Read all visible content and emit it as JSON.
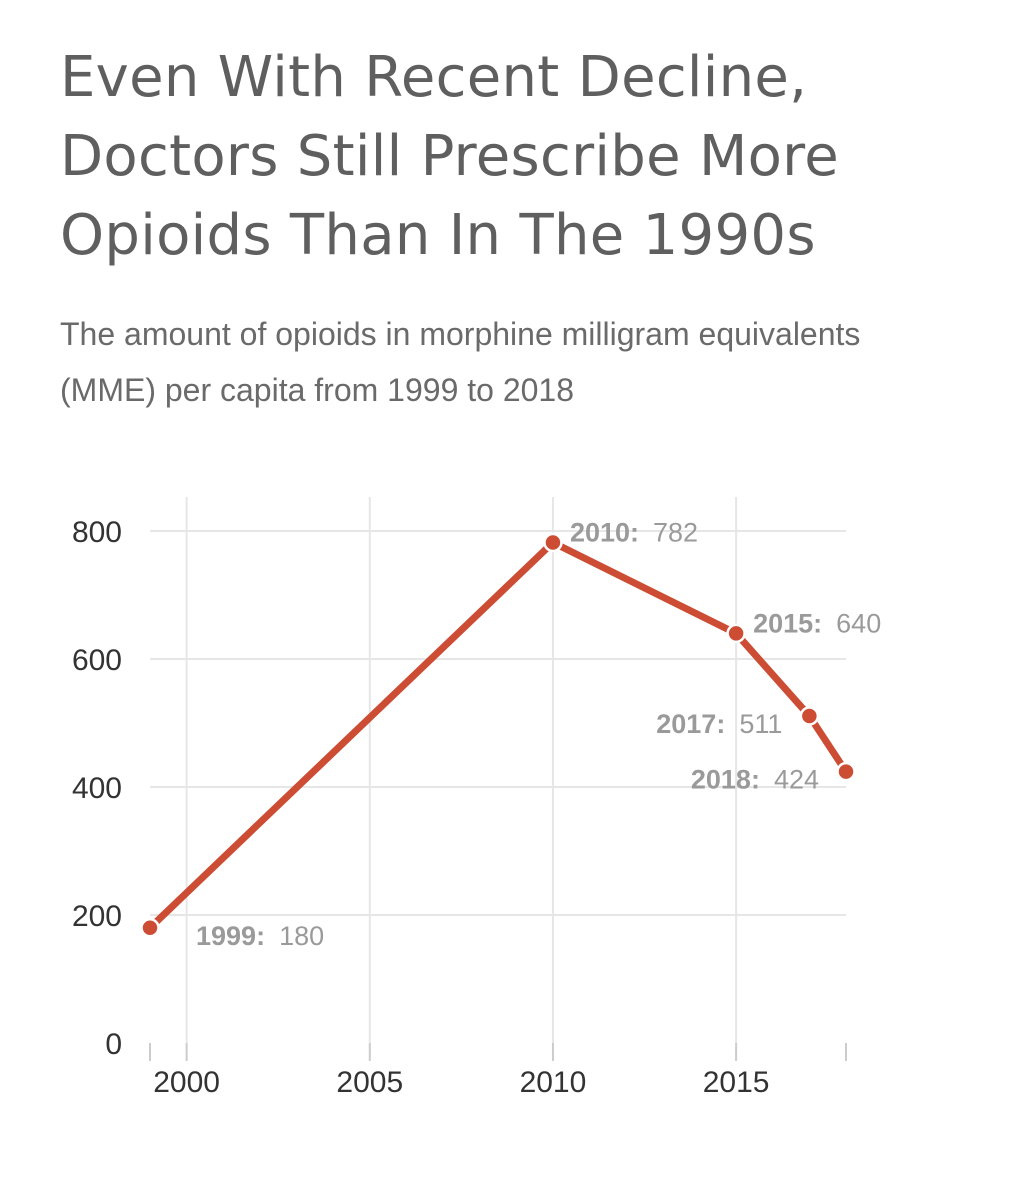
{
  "header": {
    "title": "Even With Recent Decline, Doctors Still Prescribe More Opioids Than In The 1990s",
    "subtitle": "The amount of opioids in morphine milligram equivalents (MME) per capita from 1999 to 2018"
  },
  "chart_data": {
    "type": "line",
    "title": "Even With Recent Decline, Doctors Still Prescribe More Opioids Than In The 1990s",
    "subtitle": "The amount of opioids in morphine milligram equivalents (MME) per capita from 1999 to 2018",
    "xlabel": "",
    "ylabel": "",
    "xlim": [
      1999,
      2018
    ],
    "ylim": [
      0,
      800
    ],
    "x_ticks": [
      2000,
      2005,
      2010,
      2015
    ],
    "y_ticks": [
      0,
      200,
      400,
      600,
      800
    ],
    "grid": true,
    "line_color": "#cc4c34",
    "series": [
      {
        "name": "MME per capita",
        "points": [
          {
            "x": 1999,
            "y": 180
          },
          {
            "x": 2010,
            "y": 782
          },
          {
            "x": 2015,
            "y": 640
          },
          {
            "x": 2017,
            "y": 511
          },
          {
            "x": 2018,
            "y": 424
          }
        ]
      }
    ],
    "annotations": [
      {
        "x": 1999,
        "y": 180,
        "year_label": "1999:",
        "value_label": "180",
        "placement": "below-right"
      },
      {
        "x": 2010,
        "y": 782,
        "year_label": "2010:",
        "value_label": "782",
        "placement": "right"
      },
      {
        "x": 2015,
        "y": 640,
        "year_label": "2015:",
        "value_label": "640",
        "placement": "right"
      },
      {
        "x": 2017,
        "y": 511,
        "year_label": "2017:",
        "value_label": "511",
        "placement": "left"
      },
      {
        "x": 2018,
        "y": 424,
        "year_label": "2018:",
        "value_label": "424",
        "placement": "left"
      }
    ]
  }
}
